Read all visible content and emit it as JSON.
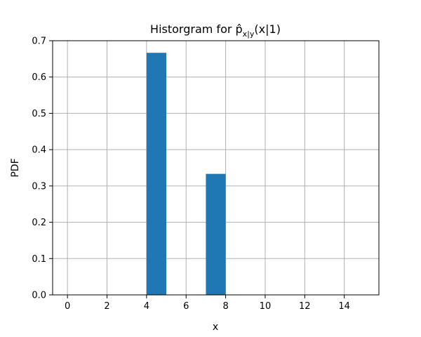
{
  "chart_data": {
    "type": "bar",
    "title": "Historgram for p̂",
    "title_subscript": "x|y",
    "title_suffix": "(x|1)",
    "xlabel": "x",
    "ylabel": "PDF",
    "xlim": [
      -0.75,
      15.75
    ],
    "ylim": [
      0,
      0.7
    ],
    "xticks": [
      0,
      2,
      4,
      6,
      8,
      10,
      12,
      14
    ],
    "xtick_labels": [
      "0",
      "2",
      "4",
      "6",
      "8",
      "10",
      "12",
      "14"
    ],
    "yticks": [
      0,
      0.1,
      0.2,
      0.3,
      0.4,
      0.5,
      0.6,
      0.7
    ],
    "ytick_labels": [
      "0.0",
      "0.1",
      "0.2",
      "0.3",
      "0.4",
      "0.5",
      "0.6",
      "0.7"
    ],
    "grid": true,
    "bar_color": "#1f77b4",
    "grid_color": "#b0b0b0",
    "bins": [
      {
        "start": 4.0,
        "end": 5.0,
        "value": 0.6667
      },
      {
        "start": 7.0,
        "end": 8.0,
        "value": 0.3333
      }
    ]
  }
}
